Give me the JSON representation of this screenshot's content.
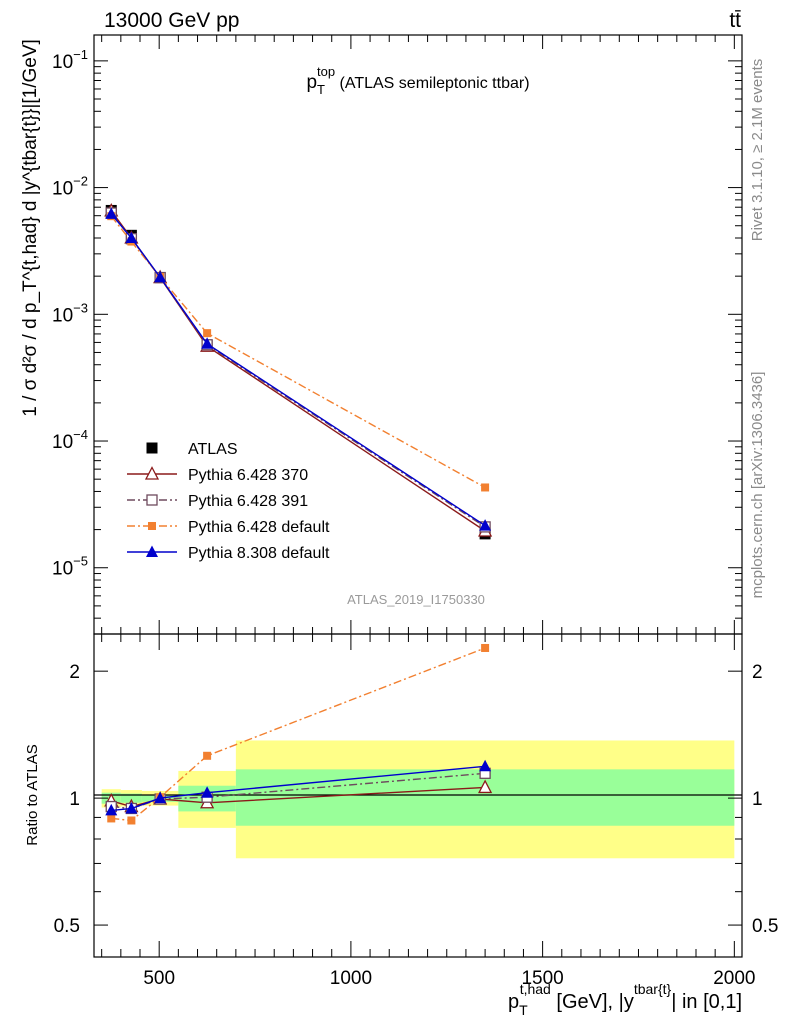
{
  "header": {
    "energy_label": "13000 GeV pp",
    "process_label": "tt̄"
  },
  "side_labels": {
    "rivet": "Rivet 3.1.10, ≥ 2.1M events",
    "mcplots": "mcplots.cern.ch [arXiv:1306.3436]"
  },
  "chart_data": [
    {
      "type": "line",
      "panel": "main",
      "title": {
        "main": "p",
        "sup": "top",
        "sub": "T",
        "rest": " (ATLAS semileptonic ttbar)"
      },
      "analysis_label": "ATLAS_2019_I1750330",
      "ylabel": "1 / σ d²σ / d p_T^{t,had} d |y^{tbar{t}}|[1/GeV]",
      "yscale": "log",
      "ylim": [
        3e-06,
        0.16
      ],
      "xlim": [
        330,
        2020
      ],
      "yticks": [
        {
          "value": 0.1,
          "mant": "10",
          "exp": "−1"
        },
        {
          "value": 0.01,
          "mant": "10",
          "exp": "−2"
        },
        {
          "value": 0.001,
          "mant": "10",
          "exp": "−3"
        },
        {
          "value": 0.0001,
          "mant": "10",
          "exp": "−4"
        },
        {
          "value": 1e-05,
          "mant": "10",
          "exp": "−5"
        }
      ],
      "legend_position": "lower-left",
      "x": [
        375,
        427.5,
        502.5,
        625,
        1350
      ],
      "series": [
        {
          "name": "ATLAS",
          "color": "#000000",
          "marker": "square",
          "line": "none",
          "values": [
            0.0066,
            0.0042,
            0.00195,
            0.00057,
            1.85e-05
          ]
        },
        {
          "name": "Pythia 6.428 370",
          "color": "#8b1a1a",
          "marker": "triangle-open",
          "line": "solid",
          "values": [
            0.00655,
            0.004,
            0.00195,
            0.00056,
            1.95e-05
          ]
        },
        {
          "name": "Pythia 6.428 391",
          "color": "#6e4a5e",
          "marker": "square-open",
          "line": "dashdot",
          "values": [
            0.0063,
            0.00395,
            0.00195,
            0.000575,
            2.1e-05
          ]
        },
        {
          "name": "Pythia 6.428 default",
          "color": "#f28030",
          "marker": "square-small",
          "line": "dashdot",
          "values": [
            0.00595,
            0.00375,
            0.00197,
            0.00071,
            4.3e-05
          ]
        },
        {
          "name": "Pythia 8.308 default",
          "color": "#0000cc",
          "marker": "triangle",
          "line": "solid",
          "values": [
            0.0062,
            0.004,
            0.00196,
            0.000585,
            2.15e-05
          ]
        }
      ]
    },
    {
      "type": "line",
      "panel": "ratio",
      "ylabel": "Ratio to ATLAS",
      "xlabel": {
        "main": "p",
        "sup": "t,had",
        "sub": "T",
        "rest": " [GeV], |y",
        "sup2": "tbar{t}",
        "rest2": "| in [0,1]"
      },
      "yscale": "log",
      "ylim": [
        0.42,
        2.45
      ],
      "xlim": [
        330,
        2020
      ],
      "xticks": [
        500,
        1000,
        1500,
        2000
      ],
      "yticks": [
        0.5,
        1,
        2
      ],
      "reference_line": 1,
      "bins": [
        [
          350,
          400
        ],
        [
          400,
          455
        ],
        [
          455,
          550
        ],
        [
          550,
          700
        ],
        [
          700,
          2000
        ]
      ],
      "band_inner": [
        [
          0.97,
          1.03
        ],
        [
          0.975,
          1.025
        ],
        [
          0.98,
          1.02
        ],
        [
          0.93,
          1.07
        ],
        [
          0.86,
          1.17
        ]
      ],
      "band_outer": [
        [
          0.95,
          1.05
        ],
        [
          0.955,
          1.045
        ],
        [
          0.96,
          1.04
        ],
        [
          0.85,
          1.16
        ],
        [
          0.72,
          1.37
        ]
      ],
      "x": [
        375,
        427.5,
        502.5,
        625,
        1350
      ],
      "series": [
        {
          "name": "Pythia 6.428 370",
          "color": "#8b1a1a",
          "marker": "triangle-open",
          "line": "solid",
          "values": [
            0.985,
            0.955,
            0.995,
            0.975,
            1.06
          ]
        },
        {
          "name": "Pythia 6.428 391",
          "color": "#6e4a5e",
          "marker": "square-open",
          "line": "dashdot",
          "values": [
            0.955,
            0.945,
            0.995,
            1.005,
            1.145
          ]
        },
        {
          "name": "Pythia 6.428 default",
          "color": "#f28030",
          "marker": "square-small",
          "line": "dashdot",
          "values": [
            0.895,
            0.885,
            1.005,
            1.26,
            2.27
          ]
        },
        {
          "name": "Pythia 8.308 default",
          "color": "#0000cc",
          "marker": "triangle",
          "line": "solid",
          "values": [
            0.935,
            0.945,
            1.0,
            1.03,
            1.19
          ]
        }
      ]
    }
  ]
}
